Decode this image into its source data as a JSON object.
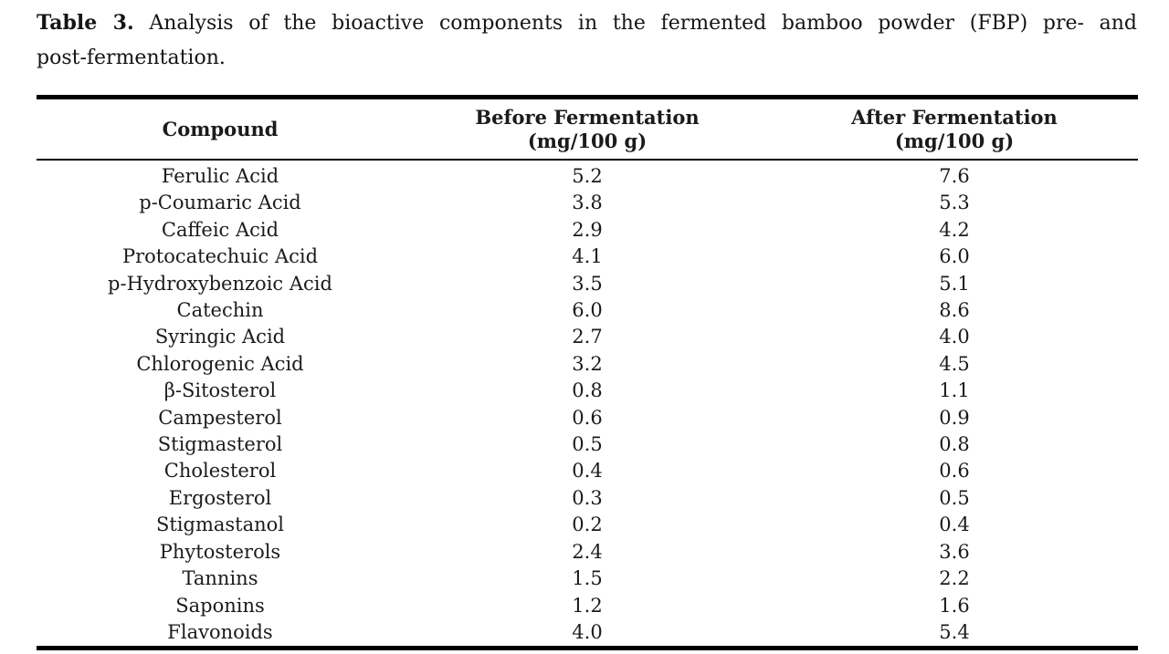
{
  "caption": {
    "label": "Table 3.",
    "text_line1": "Analysis of the bioactive components in the fermented bamboo powder (FBP) pre- and",
    "text_line2": "post-fermentation."
  },
  "table": {
    "columns": [
      {
        "title": "Compound",
        "unit": ""
      },
      {
        "title": "Before Fermentation",
        "unit": "(mg/100 g)"
      },
      {
        "title": "After Fermentation",
        "unit": "(mg/100 g)"
      }
    ],
    "rows": [
      {
        "compound": "Ferulic Acid",
        "before": "5.2",
        "after": "7.6"
      },
      {
        "compound": "p-Coumaric Acid",
        "before": "3.8",
        "after": "5.3"
      },
      {
        "compound": "Caffeic Acid",
        "before": "2.9",
        "after": "4.2"
      },
      {
        "compound": "Protocatechuic Acid",
        "before": "4.1",
        "after": "6.0"
      },
      {
        "compound": "p-Hydroxybenzoic Acid",
        "before": "3.5",
        "after": "5.1"
      },
      {
        "compound": "Catechin",
        "before": "6.0",
        "after": "8.6"
      },
      {
        "compound": "Syringic Acid",
        "before": "2.7",
        "after": "4.0"
      },
      {
        "compound": "Chlorogenic Acid",
        "before": "3.2",
        "after": "4.5"
      },
      {
        "compound": "β-Sitosterol",
        "before": "0.8",
        "after": "1.1"
      },
      {
        "compound": "Campesterol",
        "before": "0.6",
        "after": "0.9"
      },
      {
        "compound": "Stigmasterol",
        "before": "0.5",
        "after": "0.8"
      },
      {
        "compound": "Cholesterol",
        "before": "0.4",
        "after": "0.6"
      },
      {
        "compound": "Ergosterol",
        "before": "0.3",
        "after": "0.5"
      },
      {
        "compound": "Stigmastanol",
        "before": "0.2",
        "after": "0.4"
      },
      {
        "compound": "Phytosterols",
        "before": "2.4",
        "after": "3.6"
      },
      {
        "compound": "Tannins",
        "before": "1.5",
        "after": "2.2"
      },
      {
        "compound": "Saponins",
        "before": "1.2",
        "after": "1.6"
      },
      {
        "compound": "Flavonoids",
        "before": "4.0",
        "after": "5.4"
      }
    ]
  },
  "colors": {
    "text": "#1b1b1b",
    "rule": "#000000",
    "background": "#ffffff"
  }
}
